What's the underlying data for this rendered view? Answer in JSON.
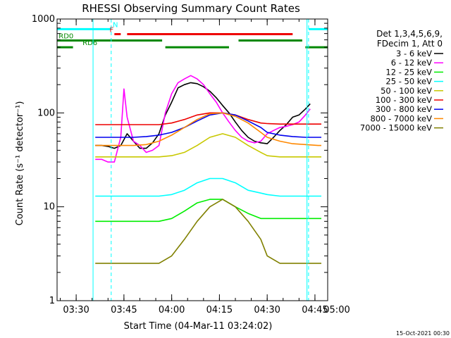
{
  "chart_data": {
    "type": "line",
    "title": "RHESSI Observing Summary Count Rates",
    "xlabel": "Start Time (04-Mar-11 03:24:02)",
    "ylabel": "Count Rate (s⁻¹ detector⁻¹)",
    "y_scale": "log",
    "xlim_min": [
      24.0,
      109.0
    ],
    "ylim": [
      1,
      1000
    ],
    "x_ticks": [
      {
        "label": "03:30",
        "min": 30
      },
      {
        "label": "03:45",
        "min": 45
      },
      {
        "label": "04:00",
        "min": 60
      },
      {
        "label": "04:15",
        "min": 75
      },
      {
        "label": "04:30",
        "min": 90
      },
      {
        "label": "04:45",
        "min": 105
      },
      {
        "label": "05:00",
        "min": 120
      }
    ],
    "y_ticks": [
      {
        "label": "1",
        "v": 1
      },
      {
        "label": "10",
        "v": 10
      },
      {
        "label": "100",
        "v": 100
      },
      {
        "label": "1000",
        "v": 1000
      }
    ],
    "legend": {
      "placement": "right",
      "header": [
        "Det 1,3,4,5,6,9,",
        "FDecim 1, Att 0"
      ]
    },
    "series": [
      {
        "name": "3 - 6 keV",
        "color": "#000000",
        "x": [
          36,
          38,
          40,
          42,
          44,
          46,
          48,
          50,
          52,
          54,
          56,
          58,
          60,
          62,
          64,
          66,
          68,
          70,
          72,
          74,
          76,
          78,
          80,
          82,
          84,
          86,
          88,
          90,
          92,
          94,
          96,
          98,
          100,
          102,
          103.5
        ],
        "y": [
          45,
          45,
          44,
          42,
          45,
          60,
          50,
          42,
          42,
          48,
          60,
          95,
          130,
          185,
          200,
          210,
          205,
          190,
          170,
          145,
          120,
          100,
          80,
          65,
          55,
          50,
          48,
          47,
          55,
          65,
          75,
          90,
          95,
          110,
          125
        ]
      },
      {
        "name": "6 - 12 keV",
        "color": "#ff00ff",
        "x": [
          36,
          38,
          40,
          42,
          44,
          45,
          46,
          48,
          50,
          52,
          54,
          56,
          58,
          60,
          62,
          64,
          66,
          68,
          70,
          72,
          74,
          76,
          78,
          80,
          82,
          84,
          86,
          88,
          90,
          92,
          94,
          96,
          98,
          100,
          102,
          103.5
        ],
        "y": [
          32,
          32,
          30,
          30,
          55,
          180,
          90,
          50,
          45,
          38,
          40,
          45,
          100,
          160,
          210,
          230,
          250,
          230,
          200,
          160,
          130,
          100,
          80,
          65,
          55,
          50,
          48,
          50,
          60,
          65,
          70,
          72,
          75,
          80,
          95,
          110
        ]
      },
      {
        "name": "12 - 25 keV",
        "color": "#00ee00",
        "x": [
          36,
          40,
          44,
          48,
          52,
          56,
          60,
          64,
          68,
          72,
          76,
          80,
          84,
          88,
          90,
          94,
          98,
          102,
          106,
          107
        ],
        "y": [
          7,
          7,
          7,
          7,
          7,
          7,
          7.5,
          9,
          11,
          12,
          12,
          10,
          8.5,
          7.5,
          7.5,
          7.5,
          7.5,
          7.5,
          7.5,
          7.5
        ]
      },
      {
        "name": "25 - 50 keV",
        "color": "#00ffff",
        "x": [
          36,
          40,
          44,
          48,
          52,
          56,
          60,
          64,
          68,
          72,
          76,
          80,
          84,
          88,
          90,
          94,
          98,
          102,
          106,
          107
        ],
        "y": [
          13,
          13,
          13,
          13,
          13,
          13,
          13.5,
          15,
          18,
          20,
          20,
          18,
          15,
          14,
          13.5,
          13,
          13,
          13,
          13,
          13
        ]
      },
      {
        "name": "50 - 100 keV",
        "color": "#c8c800",
        "x": [
          36,
          40,
          44,
          48,
          52,
          56,
          60,
          64,
          68,
          72,
          76,
          80,
          84,
          88,
          90,
          94,
          98,
          102,
          106,
          107
        ],
        "y": [
          34,
          34,
          34,
          34,
          34,
          34,
          35,
          38,
          45,
          55,
          60,
          55,
          45,
          38,
          35,
          34,
          34,
          34,
          34,
          34
        ]
      },
      {
        "name": "100 - 300 keV",
        "color": "#ee0000",
        "x": [
          36,
          40,
          44,
          48,
          52,
          56,
          60,
          64,
          68,
          72,
          76,
          80,
          84,
          88,
          90,
          94,
          98,
          102,
          106,
          107
        ],
        "y": [
          75,
          75,
          75,
          75,
          75,
          75,
          78,
          85,
          95,
          100,
          100,
          95,
          85,
          78,
          77,
          76,
          76,
          76,
          76,
          76
        ]
      },
      {
        "name": "300 - 800 keV",
        "color": "#0000ee",
        "x": [
          36,
          40,
          44,
          48,
          52,
          56,
          60,
          64,
          68,
          72,
          76,
          80,
          84,
          88,
          90,
          94,
          98,
          102,
          106,
          107
        ],
        "y": [
          55,
          55,
          55,
          55,
          56,
          58,
          62,
          70,
          82,
          95,
          100,
          95,
          82,
          70,
          62,
          58,
          56,
          55,
          55,
          55
        ]
      },
      {
        "name": "800 - 7000 keV",
        "color": "#ff8800",
        "x": [
          36,
          40,
          44,
          48,
          52,
          56,
          60,
          64,
          68,
          72,
          76,
          80,
          84,
          88,
          90,
          94,
          98,
          102,
          106,
          107
        ],
        "y": [
          45,
          45,
          45,
          45,
          46,
          50,
          58,
          70,
          85,
          98,
          100,
          92,
          78,
          62,
          55,
          50,
          47,
          46,
          45,
          45
        ]
      },
      {
        "name": "7000 - 15000 keV",
        "color": "#808000",
        "x": [
          36,
          40,
          44,
          48,
          52,
          56,
          60,
          64,
          68,
          72,
          76,
          80,
          84,
          88,
          90,
          94,
          98,
          102,
          106,
          107
        ],
        "y": [
          2.5,
          2.5,
          2.5,
          2.5,
          2.5,
          2.5,
          3,
          4.5,
          7,
          10,
          12,
          10,
          7,
          4.5,
          3,
          2.5,
          2.5,
          2.5,
          2.5,
          2.5
        ]
      }
    ],
    "flags": [
      {
        "label": "",
        "color": "#00ffff",
        "y_level": 780,
        "segments": [
          [
            24,
            41
          ],
          [
            103,
            109
          ]
        ]
      },
      {
        "label": "N",
        "color": "#00ffff",
        "y_level": 780,
        "segments": [],
        "label_at": 41.5
      },
      {
        "label": "F",
        "color": "#ee0000",
        "y_level": 690,
        "segments": [
          [
            42,
            44
          ],
          [
            46,
            98
          ]
        ],
        "label_at": 40.5
      },
      {
        "label": "RD0",
        "color": "#008800",
        "y_level": 590,
        "segments": [
          [
            24,
            57
          ],
          [
            81,
            101
          ]
        ],
        "label_at": 24.5
      },
      {
        "label": "RD6",
        "color": "#008800",
        "y_level": 500,
        "segments": [
          [
            24,
            29
          ],
          [
            58,
            78
          ],
          [
            102,
            109
          ]
        ],
        "label_at": 32
      }
    ],
    "vertical_markers": [
      {
        "color": "#00ffff",
        "style": "dashed",
        "x": [
          41,
          103
        ]
      },
      {
        "color": "#00ffff",
        "style": "solid",
        "x": [
          35.3,
          102.5
        ]
      }
    ]
  },
  "footer_timestamp": "15-Oct-2021 00:30"
}
